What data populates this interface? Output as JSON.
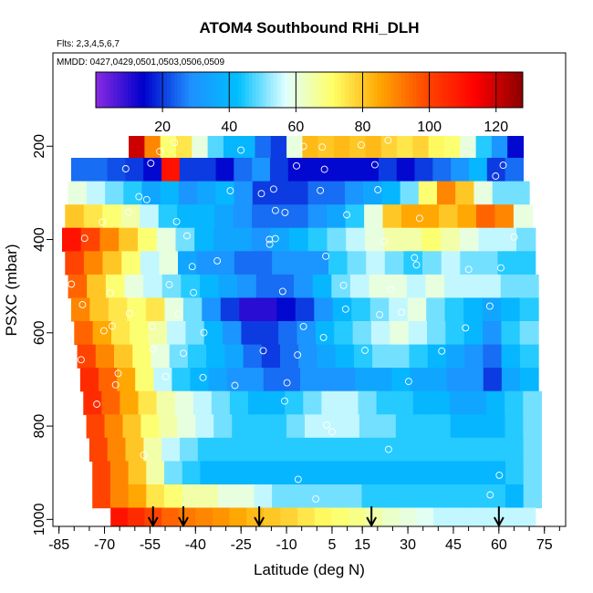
{
  "chart_data": {
    "type": "heatmap",
    "title": "ATOM4 Southbound RHi_DLH",
    "flights_note": "Flts: 2,3,4,5,6,7",
    "dates_note": "MMDD: 0427,0429,0501,0503,0506,0509",
    "xlabel": "Latitude (deg N)",
    "ylabel": "PSXC (mbar)",
    "xlim": [
      -87,
      82
    ],
    "ylim": [
      1015,
      0
    ],
    "x_ticks": [
      -85,
      -70,
      -55,
      -40,
      -25,
      -10,
      5,
      15,
      30,
      45,
      60,
      75
    ],
    "x_tick_labels": [
      "-85",
      "-70",
      "-55",
      "-40",
      "-25",
      "-10",
      "5",
      "15",
      "30",
      "45",
      "60",
      "75"
    ],
    "y_ticks": [
      200,
      400,
      600,
      800,
      1000
    ],
    "y_tick_labels": [
      "200",
      "400",
      "600",
      "800",
      "1000"
    ],
    "colorbar": {
      "min": 0,
      "max": 128,
      "ticks": [
        20,
        40,
        60,
        80,
        100,
        120
      ],
      "tick_labels": [
        "20",
        "40",
        "60",
        "80",
        "100",
        "120"
      ],
      "colors": [
        "#8a2be2",
        "#0000cd",
        "#1e90ff",
        "#00bfff",
        "#e0ffff",
        "#ffff66",
        "#ffa500",
        "#ff4500",
        "#ff0000",
        "#8b0000"
      ]
    },
    "rows": [
      {
        "p": 200,
        "x0": -62,
        "x1": 68,
        "vals": [
          120,
          90,
          70,
          75,
          60,
          48,
          40,
          40,
          25,
          20,
          60,
          82,
          80,
          82,
          80,
          82,
          78,
          75,
          78,
          72,
          70,
          60,
          45,
          30,
          15
        ]
      },
      {
        "p": 250,
        "x0": -81,
        "x1": 68,
        "vals": [
          25,
          25,
          22,
          20,
          15,
          110,
          20,
          20,
          15,
          25,
          30,
          20,
          15,
          15,
          15,
          15,
          15,
          20,
          15,
          20,
          25,
          30,
          40,
          20,
          25
        ]
      },
      {
        "p": 300,
        "x0": -82,
        "x1": 70,
        "vals": [
          60,
          55,
          50,
          45,
          35,
          40,
          30,
          35,
          40,
          30,
          20,
          20,
          20,
          25,
          25,
          30,
          35,
          40,
          50,
          70,
          90,
          80,
          60,
          50,
          50
        ]
      },
      {
        "p": 350,
        "x0": -83,
        "x1": 71,
        "vals": [
          80,
          75,
          70,
          65,
          55,
          45,
          40,
          40,
          35,
          30,
          25,
          25,
          25,
          30,
          35,
          45,
          60,
          80,
          85,
          85,
          80,
          85,
          95,
          90,
          60
        ]
      },
      {
        "p": 400,
        "x0": -84,
        "x1": 72,
        "vals": [
          110,
          100,
          90,
          80,
          70,
          60,
          50,
          40,
          35,
          35,
          30,
          35,
          40,
          45,
          50,
          55,
          60,
          65,
          65,
          70,
          65,
          60,
          55,
          55,
          50
        ]
      },
      {
        "p": 450,
        "x0": -83,
        "x1": 72,
        "vals": [
          100,
          90,
          80,
          70,
          55,
          60,
          35,
          30,
          30,
          25,
          25,
          30,
          30,
          30,
          45,
          50,
          55,
          50,
          45,
          50,
          55,
          50,
          50,
          45,
          45
        ]
      },
      {
        "p": 500,
        "x0": -82,
        "x1": 73,
        "vals": [
          95,
          80,
          70,
          60,
          55,
          50,
          45,
          40,
          35,
          30,
          25,
          25,
          30,
          40,
          50,
          55,
          60,
          60,
          55,
          60,
          55,
          55,
          55,
          50,
          50
        ]
      },
      {
        "p": 550,
        "x0": -81,
        "x1": 73,
        "vals": [
          90,
          80,
          75,
          70,
          75,
          60,
          50,
          30,
          20,
          10,
          10,
          15,
          20,
          30,
          40,
          45,
          50,
          55,
          60,
          50,
          45,
          40,
          35,
          40,
          45
        ]
      },
      {
        "p": 600,
        "x0": -80,
        "x1": 73,
        "vals": [
          95,
          85,
          75,
          70,
          65,
          55,
          50,
          40,
          30,
          20,
          20,
          25,
          30,
          40,
          45,
          50,
          55,
          60,
          55,
          50,
          45,
          40,
          30,
          45,
          50
        ]
      },
      {
        "p": 650,
        "x0": -79,
        "x1": 73,
        "vals": [
          100,
          90,
          80,
          70,
          60,
          50,
          45,
          40,
          35,
          25,
          20,
          25,
          30,
          35,
          40,
          45,
          50,
          50,
          45,
          40,
          35,
          30,
          25,
          40,
          45
        ]
      },
      {
        "p": 700,
        "x0": -78,
        "x1": 73,
        "vals": [
          105,
          95,
          85,
          70,
          55,
          45,
          40,
          35,
          30,
          30,
          25,
          25,
          30,
          30,
          30,
          35,
          35,
          40,
          35,
          35,
          30,
          30,
          20,
          35,
          40
        ]
      },
      {
        "p": 750,
        "x0": -77,
        "x1": 74,
        "vals": [
          105,
          95,
          85,
          75,
          65,
          60,
          55,
          50,
          45,
          40,
          40,
          45,
          50,
          55,
          55,
          50,
          45,
          45,
          40,
          40,
          35,
          35,
          40,
          45,
          50
        ]
      },
      {
        "p": 800,
        "x0": -76,
        "x1": 74,
        "vals": [
          100,
          90,
          80,
          70,
          65,
          60,
          55,
          50,
          45,
          45,
          45,
          50,
          55,
          55,
          55,
          50,
          50,
          45,
          45,
          45,
          40,
          40,
          40,
          45,
          50
        ]
      },
      {
        "p": 850,
        "x0": -75,
        "x1": 74,
        "vals": [
          100,
          90,
          80,
          65,
          55,
          50,
          45,
          45,
          45,
          45,
          45,
          45,
          45,
          45,
          45,
          45,
          45,
          45,
          45,
          45,
          45,
          45,
          45,
          45,
          50
        ]
      },
      {
        "p": 900,
        "x0": -74,
        "x1": 74,
        "vals": [
          100,
          90,
          80,
          65,
          50,
          45,
          40,
          40,
          40,
          40,
          40,
          40,
          40,
          40,
          40,
          40,
          40,
          40,
          40,
          40,
          40,
          40,
          40,
          45,
          50
        ]
      },
      {
        "p": 950,
        "x0": -74,
        "x1": 74,
        "vals": [
          100,
          90,
          85,
          75,
          70,
          65,
          65,
          60,
          60,
          55,
          50,
          50,
          50,
          50,
          50,
          45,
          45,
          45,
          45,
          45,
          45,
          45,
          45,
          40,
          50
        ]
      },
      {
        "p": 1000,
        "x0": -68,
        "x1": 72,
        "vals": [
          110,
          105,
          100,
          95,
          92,
          90,
          88,
          85,
          82,
          80,
          78,
          75,
          72,
          70,
          68,
          65,
          62,
          60,
          58,
          55,
          55,
          55,
          55,
          55,
          55
        ]
      }
    ],
    "arrows_x": [
      -54,
      -44,
      -19,
      18,
      60
    ]
  }
}
